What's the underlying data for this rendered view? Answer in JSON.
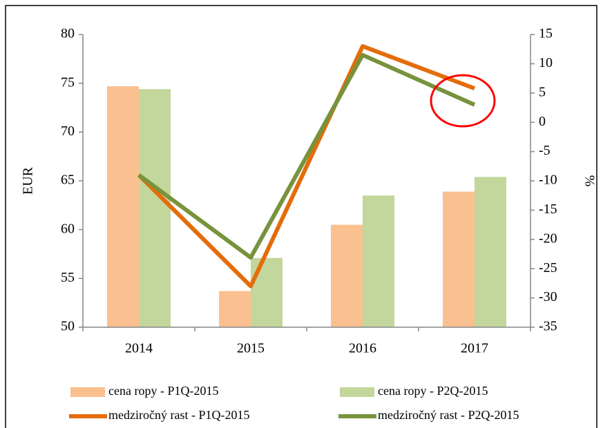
{
  "chart_data": {
    "type": "bar-line",
    "categories": [
      "2014",
      "2015",
      "2016",
      "2017"
    ],
    "ylabel": "EUR",
    "y2label": "%",
    "ylim": [
      50,
      80
    ],
    "yticks": [
      50,
      55,
      60,
      65,
      70,
      75,
      80
    ],
    "y2lim": [
      -35,
      15
    ],
    "y2ticks": [
      -35,
      -30,
      -25,
      -20,
      -15,
      -10,
      -5,
      0,
      5,
      10,
      15
    ],
    "series": [
      {
        "name": "cena ropy - P1Q-2015",
        "type": "bar",
        "color": "#fac090",
        "values": [
          74.7,
          53.7,
          60.5,
          63.9
        ]
      },
      {
        "name": "cena ropy - P2Q-2015",
        "type": "bar",
        "color": "#c3d69b",
        "values": [
          74.4,
          57.1,
          63.5,
          65.4
        ]
      },
      {
        "name": "medziročný rast - P1Q-2015",
        "type": "line",
        "axis": "y2",
        "color": "#e46c0a",
        "values": [
          -9,
          -28,
          13,
          5.8
        ]
      },
      {
        "name": "medziročný rast - P2Q-2015",
        "type": "line",
        "axis": "y2",
        "color": "#77933c",
        "values": [
          -9,
          -23.1,
          11.5,
          3
        ]
      }
    ]
  }
}
